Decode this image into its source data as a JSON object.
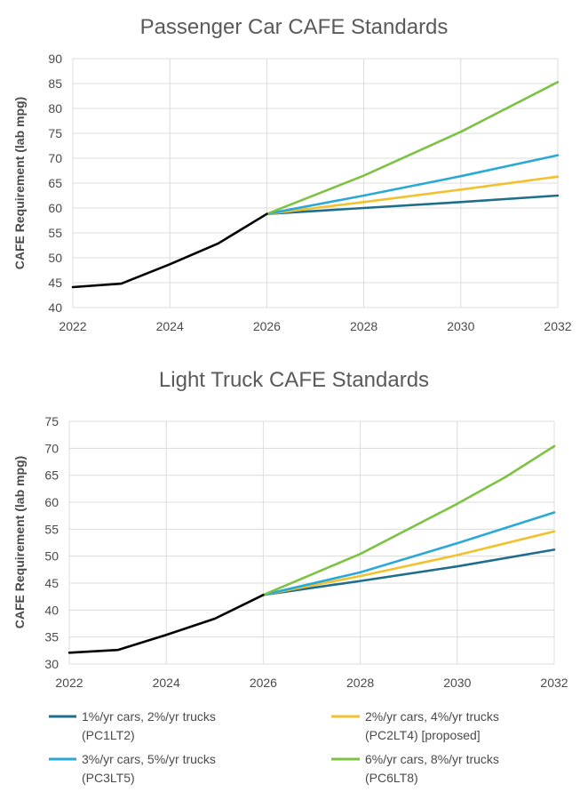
{
  "chart_data": [
    {
      "type": "line",
      "title": "Passenger Car CAFE Standards",
      "xlabel": "",
      "ylabel": "CAFE Requirement (lab mpg)",
      "xlim": [
        2022,
        2032
      ],
      "ylim": [
        40,
        90
      ],
      "xticks": [
        "2022",
        "2024",
        "2026",
        "2028",
        "2030",
        "2032"
      ],
      "yticks": [
        "40",
        "45",
        "50",
        "55",
        "60",
        "65",
        "70",
        "75",
        "80",
        "85",
        "90"
      ],
      "grid": true,
      "baseline": {
        "color": "#000000",
        "x": [
          2022,
          2023,
          2024,
          2025,
          2026
        ],
        "y": [
          44.1,
          44.8,
          48.7,
          52.9,
          58.8
        ]
      },
      "series": [
        {
          "name": "1%/yr cars, 2%/yr trucks (PC1LT2)",
          "color": "#1f6e8c",
          "x": [
            2026,
            2028,
            2030,
            2032
          ],
          "y": [
            58.8,
            60.0,
            61.2,
            62.5
          ]
        },
        {
          "name": "2%/yr cars, 4%/yr trucks (PC2LT4) [proposed]",
          "color": "#f2c12e",
          "x": [
            2026,
            2028,
            2030,
            2032
          ],
          "y": [
            58.8,
            61.2,
            63.7,
            66.3
          ]
        },
        {
          "name": "3%/yr cars, 5%/yr trucks (PC3LT5)",
          "color": "#2aa9d6",
          "x": [
            2026,
            2028,
            2030,
            2032
          ],
          "y": [
            58.8,
            62.5,
            66.4,
            70.6
          ]
        },
        {
          "name": "6%/yr cars, 8%/yr trucks (PC6LT8)",
          "color": "#7dc242",
          "x": [
            2026,
            2028,
            2030,
            2032
          ],
          "y": [
            58.8,
            66.5,
            75.3,
            85.3
          ]
        }
      ]
    },
    {
      "type": "line",
      "title": "Light Truck CAFE Standards",
      "xlabel": "",
      "ylabel": "CAFE Requirement (lab mpg)",
      "xlim": [
        2022,
        2032
      ],
      "ylim": [
        30,
        75
      ],
      "xticks": [
        "2022",
        "2024",
        "2026",
        "2028",
        "2030",
        "2032"
      ],
      "yticks": [
        "30",
        "35",
        "40",
        "45",
        "50",
        "55",
        "60",
        "65",
        "70",
        "75"
      ],
      "grid": true,
      "baseline": {
        "color": "#000000",
        "x": [
          2022,
          2023,
          2024,
          2025,
          2026
        ],
        "y": [
          32.1,
          32.6,
          35.4,
          38.4,
          42.8
        ]
      },
      "series": [
        {
          "name": "1%/yr cars, 2%/yr trucks (PC1LT2)",
          "color": "#1f6e8c",
          "x": [
            2026,
            2028,
            2030,
            2032
          ],
          "y": [
            42.8,
            45.4,
            48.1,
            51.2
          ]
        },
        {
          "name": "2%/yr cars, 4%/yr trucks (PC2LT4) [proposed]",
          "color": "#f2c12e",
          "x": [
            2026,
            2028,
            2030,
            2032
          ],
          "y": [
            42.8,
            46.3,
            50.2,
            54.6
          ]
        },
        {
          "name": "3%/yr cars, 5%/yr trucks (PC3LT5)",
          "color": "#2aa9d6",
          "x": [
            2026,
            2028,
            2030,
            2032
          ],
          "y": [
            42.8,
            47.0,
            52.4,
            58.1
          ]
        },
        {
          "name": "6%/yr cars, 8%/yr trucks (PC6LT8)",
          "color": "#7dc242",
          "x": [
            2026,
            2028,
            2030,
            2031,
            2032
          ],
          "y": [
            42.8,
            50.4,
            59.7,
            64.7,
            70.4
          ]
        }
      ]
    }
  ],
  "legend": [
    {
      "line1": "1%/yr cars, 2%/yr trucks",
      "line2": "(PC1LT2)",
      "color": "#1f6e8c"
    },
    {
      "line1": "2%/yr cars, 4%/yr trucks",
      "line2": "(PC2LT4) [proposed]",
      "color": "#f2c12e"
    },
    {
      "line1": "3%/yr cars, 5%/yr trucks",
      "line2": "(PC3LT5)",
      "color": "#2aa9d6"
    },
    {
      "line1": "6%/yr cars, 8%/yr trucks",
      "line2": "(PC6LT8)",
      "color": "#7dc242"
    }
  ]
}
